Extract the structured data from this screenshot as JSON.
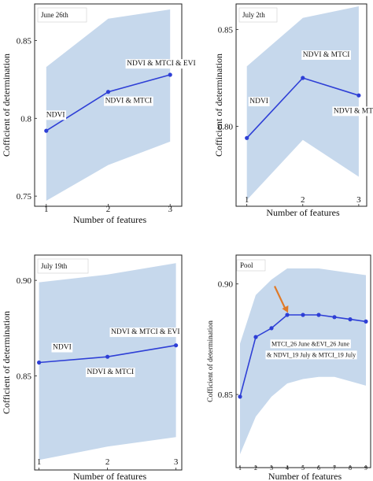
{
  "colors": {
    "line": "#2e3fd6",
    "band": "#c6d8ec",
    "arrow": "#e07a28",
    "frame": "#222222"
  },
  "chart_data": [
    {
      "type": "line",
      "title": "June 26th",
      "xlabel": "Number of features",
      "ylabel": "Cofficient of determination",
      "x": [
        1,
        2,
        3
      ],
      "values": [
        0.792,
        0.817,
        0.828
      ],
      "band_upper": [
        0.833,
        0.864,
        0.87
      ],
      "band_lower": [
        0.747,
        0.77,
        0.785
      ],
      "xlim": [
        0.85,
        3.15
      ],
      "ylim": [
        0.745,
        0.872
      ],
      "xticks": [
        1,
        2,
        3
      ],
      "yticks": [
        0.75,
        0.8,
        0.85
      ],
      "ytick_labels": [
        "0.75",
        "0.8",
        "0.85"
      ],
      "annotations": [
        {
          "text": "NDVI",
          "x": 1,
          "y": 0.801
        },
        {
          "text": "NDVI & MTCI & EVI",
          "x": 2.3,
          "y": 0.834
        },
        {
          "text": "NDVI & MTCI",
          "x": 1.95,
          "y": 0.81
        }
      ],
      "grid": false
    },
    {
      "type": "line",
      "title": "July 2th",
      "xlabel": "Number of features",
      "ylabel": "Cofficient of determination",
      "x": [
        1,
        2,
        3
      ],
      "values": [
        0.794,
        0.825,
        0.816
      ],
      "band_upper": [
        0.831,
        0.856,
        0.862
      ],
      "band_lower": [
        0.762,
        0.793,
        0.774
      ],
      "xlim": [
        0.85,
        3.1
      ],
      "ylim": [
        0.76,
        0.862
      ],
      "xticks": [
        1,
        2,
        3
      ],
      "yticks": [
        0.8,
        0.85
      ],
      "ytick_labels": [
        "0.80",
        "0.85"
      ],
      "annotations": [
        {
          "text": "NDVI",
          "x": 1.05,
          "y": 0.812
        },
        {
          "text": "NDVI & MTCI",
          "x": 2,
          "y": 0.836
        },
        {
          "text": "NDVI & MTCI & EVI",
          "x": 2.55,
          "y": 0.807
        }
      ],
      "grid": false
    },
    {
      "type": "line",
      "title": "July 19th",
      "xlabel": "Number of features",
      "ylabel": "Cofficient of determination",
      "x": [
        1,
        2,
        3
      ],
      "values": [
        0.857,
        0.86,
        0.866
      ],
      "band_upper": [
        0.899,
        0.903,
        0.909
      ],
      "band_lower": [
        0.806,
        0.813,
        0.818
      ],
      "xlim": [
        0.97,
        3.05
      ],
      "ylim": [
        0.802,
        0.912
      ],
      "xticks": [
        1,
        2,
        3
      ],
      "yticks": [
        0.85,
        0.9
      ],
      "ytick_labels": [
        "0.85",
        "0.90"
      ],
      "annotations": [
        {
          "text": "NDVI",
          "x": 1.2,
          "y": 0.864
        },
        {
          "text": "NDVI & MTCI & EVI",
          "x": 2.05,
          "y": 0.872
        },
        {
          "text": "NDVI & MTCI",
          "x": 1.7,
          "y": 0.851
        }
      ],
      "grid": false
    },
    {
      "type": "line",
      "title": "Pool",
      "xlabel": "Number of features",
      "ylabel": "Cofficient of determination",
      "x": [
        1,
        2,
        3,
        4,
        5,
        6,
        7,
        8,
        9
      ],
      "values": [
        0.849,
        0.876,
        0.88,
        0.886,
        0.886,
        0.886,
        0.885,
        0.884,
        0.883
      ],
      "band_upper": [
        0.873,
        0.895,
        0.902,
        0.907,
        0.907,
        0.907,
        0.906,
        0.905,
        0.904
      ],
      "band_lower": [
        0.823,
        0.84,
        0.849,
        0.855,
        0.857,
        0.858,
        0.858,
        0.856,
        0.854
      ],
      "xlim": [
        0.75,
        9.25
      ],
      "ylim": [
        0.818,
        0.912
      ],
      "xticks": [
        1,
        2,
        3,
        4,
        5,
        6,
        7,
        8,
        9
      ],
      "yticks": [
        0.85,
        0.9
      ],
      "ytick_labels": [
        "0.85",
        "0.90"
      ],
      "annotations": [
        {
          "text": "MTCI_26 June &EVI_26 June",
          "x": 3.0,
          "y": 0.872
        },
        {
          "text": "& NDVI_19 July & MTCI_19 July",
          "x": 2.7,
          "y": 0.867
        }
      ],
      "arrow": {
        "from": [
          3.2,
          0.899
        ],
        "to": [
          4.05,
          0.887
        ]
      },
      "grid": false
    }
  ]
}
